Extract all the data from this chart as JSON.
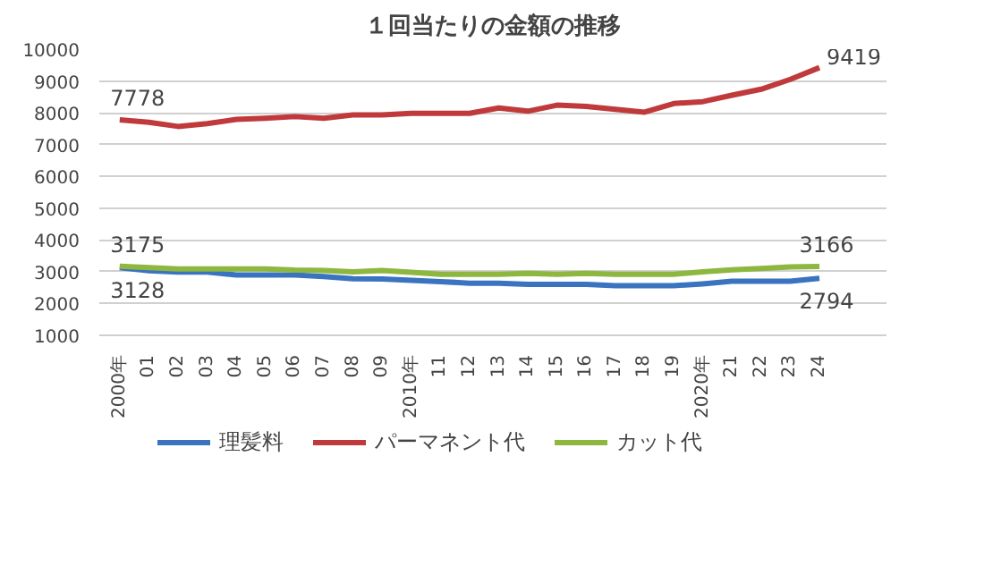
{
  "chart_data": {
    "type": "line",
    "title": "１回当たりの金額の推移",
    "categories": [
      "2000年",
      "01",
      "02",
      "03",
      "04",
      "05",
      "06",
      "07",
      "08",
      "09",
      "2010年",
      "11",
      "12",
      "13",
      "14",
      "15",
      "16",
      "17",
      "18",
      "19",
      "2020年",
      "21",
      "22",
      "23",
      "24"
    ],
    "series": [
      {
        "name": "理髪料",
        "color": "#3a73c0",
        "values": [
          3128,
          3030,
          2990,
          2990,
          2900,
          2900,
          2900,
          2850,
          2780,
          2770,
          2730,
          2690,
          2640,
          2640,
          2600,
          2600,
          2600,
          2560,
          2560,
          2560,
          2620,
          2700,
          2700,
          2700,
          2794
        ],
        "value_labels": [
          "3128",
          null,
          null,
          null,
          null,
          null,
          null,
          null,
          null,
          null,
          null,
          null,
          null,
          null,
          null,
          null,
          null,
          null,
          null,
          null,
          null,
          null,
          null,
          null,
          "2794"
        ]
      },
      {
        "name": "パーマネント代",
        "color": "#c0393b",
        "values": [
          7778,
          7700,
          7570,
          7660,
          7790,
          7830,
          7880,
          7830,
          7930,
          7930,
          7980,
          7980,
          7980,
          8150,
          8050,
          8240,
          8200,
          8110,
          8020,
          8290,
          8350,
          8550,
          8740,
          9050,
          9419
        ],
        "value_labels": [
          "7778",
          null,
          null,
          null,
          null,
          null,
          null,
          null,
          null,
          null,
          null,
          null,
          null,
          null,
          null,
          null,
          null,
          null,
          null,
          null,
          null,
          null,
          null,
          null,
          "9419"
        ]
      },
      {
        "name": "カット代",
        "color": "#8db73f",
        "values": [
          3175,
          3130,
          3090,
          3090,
          3090,
          3090,
          3050,
          3040,
          3000,
          3040,
          2980,
          2920,
          2920,
          2920,
          2950,
          2920,
          2950,
          2920,
          2920,
          2920,
          3000,
          3060,
          3100,
          3150,
          3166
        ],
        "value_labels": [
          "3175",
          null,
          null,
          null,
          null,
          null,
          null,
          null,
          null,
          null,
          null,
          null,
          null,
          null,
          null,
          null,
          null,
          null,
          null,
          null,
          null,
          null,
          null,
          null,
          "3166"
        ]
      }
    ],
    "ylim": [
      1000,
      10000
    ],
    "yticks": [
      1000,
      2000,
      3000,
      4000,
      5000,
      6000,
      7000,
      8000,
      9000,
      10000
    ],
    "grid": "y",
    "legend": "bottom",
    "marker": "none",
    "line_style": "solid"
  }
}
